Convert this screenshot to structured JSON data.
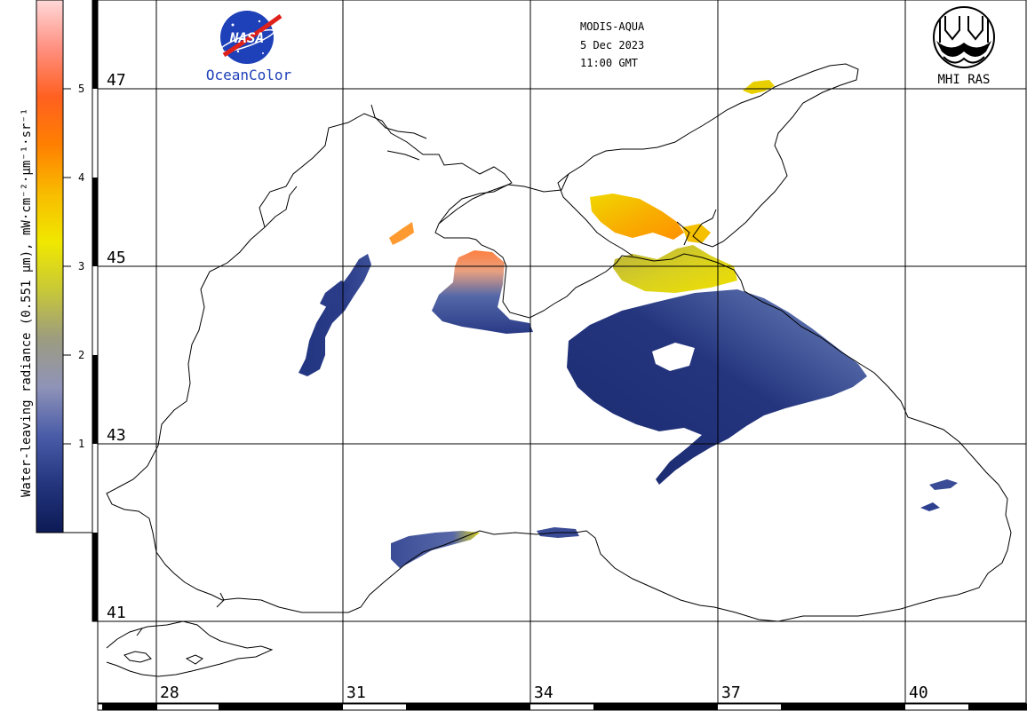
{
  "header": {
    "sensor": "MODIS-AQUA",
    "date": "5 Dec 2023",
    "time": "11:00 GMT"
  },
  "logos": {
    "nasa_text": "NASA",
    "oceancolor_text": "OceanColor",
    "mhi_text": "MHI RAS"
  },
  "colorbar": {
    "title": "Water-leaving radiance (0.551 μm), mW·cm⁻²·μm⁻¹·sr⁻¹",
    "ticks": [
      "1",
      "2",
      "3",
      "4",
      "5"
    ],
    "range": [
      0,
      6
    ],
    "colors": [
      "#0c1a55",
      "#24357e",
      "#4a5ca8",
      "#8f93b8",
      "#9c9c80",
      "#c8c838",
      "#f0e800",
      "#f8bc00",
      "#ff8000",
      "#ff6020",
      "#ff9080",
      "#ffd8d8"
    ]
  },
  "grid": {
    "lat_labels": [
      "47",
      "45",
      "43",
      "41"
    ],
    "lon_labels": [
      "28",
      "31",
      "34",
      "37",
      "40"
    ]
  },
  "map_data": {
    "region": "Black Sea",
    "parameter": "Water-leaving radiance 0.551 μm",
    "lat_ticks": [
      47,
      45,
      43,
      41
    ],
    "lon_ticks": [
      28,
      31,
      34,
      37,
      40
    ]
  }
}
